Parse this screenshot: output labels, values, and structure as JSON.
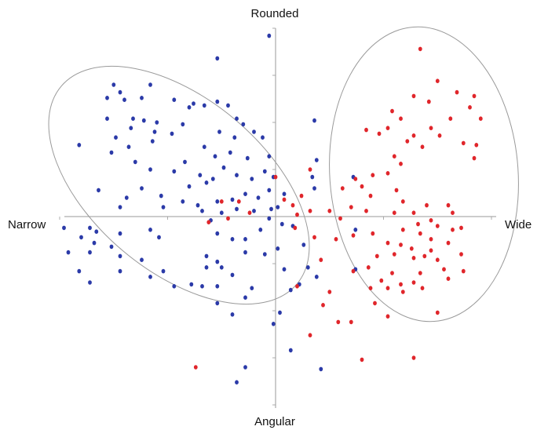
{
  "chart_data": {
    "type": "scatter",
    "title": "",
    "axes": {
      "left_label": "Narrow",
      "right_label": "Wide",
      "top_label": "Rounded",
      "bottom_label": "Angular"
    },
    "xlim": [
      -1,
      1
    ],
    "ylim": [
      -1,
      1
    ],
    "grid": false,
    "legend": "none",
    "colors": {
      "blue": "#2b3aa8",
      "red": "#e0262b",
      "ellipse": "#9a9a9a",
      "axis": "#9a9a9a"
    },
    "series": [
      {
        "color": "blue",
        "points": [
          [
            -0.03,
            0.96
          ],
          [
            -0.27,
            0.84
          ],
          [
            -0.75,
            0.7
          ],
          [
            -0.72,
            0.66
          ],
          [
            -0.58,
            0.7
          ],
          [
            -0.78,
            0.63
          ],
          [
            -0.7,
            0.62
          ],
          [
            -0.62,
            0.63
          ],
          [
            -0.38,
            0.6
          ],
          [
            -0.47,
            0.62
          ],
          [
            -0.33,
            0.59
          ],
          [
            -0.4,
            0.58
          ],
          [
            -0.27,
            0.61
          ],
          [
            -0.22,
            0.59
          ],
          [
            -0.18,
            0.52
          ],
          [
            -0.78,
            0.52
          ],
          [
            -0.66,
            0.52
          ],
          [
            -0.61,
            0.51
          ],
          [
            -0.55,
            0.5
          ],
          [
            -0.67,
            0.47
          ],
          [
            -0.43,
            0.49
          ],
          [
            -0.1,
            0.45
          ],
          [
            -0.15,
            0.49
          ],
          [
            -0.26,
            0.45
          ],
          [
            -0.48,
            0.44
          ],
          [
            -0.56,
            0.45
          ],
          [
            -0.74,
            0.42
          ],
          [
            -0.57,
            0.4
          ],
          [
            -0.33,
            0.37
          ],
          [
            -0.28,
            0.32
          ],
          [
            -0.21,
            0.34
          ],
          [
            -0.13,
            0.31
          ],
          [
            -0.19,
            0.42
          ],
          [
            -0.06,
            0.42
          ],
          [
            -0.68,
            0.37
          ],
          [
            -0.91,
            0.38
          ],
          [
            -0.76,
            0.34
          ],
          [
            -0.65,
            0.29
          ],
          [
            -0.42,
            0.29
          ],
          [
            -0.47,
            0.24
          ],
          [
            -0.58,
            0.25
          ],
          [
            -0.24,
            0.26
          ],
          [
            -0.35,
            0.22
          ],
          [
            -0.29,
            0.2
          ],
          [
            -0.18,
            0.22
          ],
          [
            -0.11,
            0.2
          ],
          [
            -0.05,
            0.24
          ],
          [
            -0.62,
            0.15
          ],
          [
            -0.69,
            0.1
          ],
          [
            -0.32,
            0.18
          ],
          [
            -0.4,
            0.16
          ],
          [
            -0.53,
            0.11
          ],
          [
            -0.43,
            0.08
          ],
          [
            -0.36,
            0.06
          ],
          [
            -0.27,
            0.08
          ],
          [
            -0.2,
            0.09
          ],
          [
            -0.14,
            0.12
          ],
          [
            -0.08,
            0.1
          ],
          [
            -0.03,
            0.14
          ],
          [
            -0.72,
            0.05
          ],
          [
            -0.52,
            0.05
          ],
          [
            -0.34,
            0.03
          ],
          [
            -0.25,
            0.02
          ],
          [
            -0.18,
            0.04
          ],
          [
            -0.1,
            0.03
          ],
          [
            -0.02,
            0.04
          ],
          [
            -0.03,
            0.32
          ],
          [
            -0.01,
            0.21
          ],
          [
            0.04,
            0.12
          ],
          [
            0.01,
            0.05
          ],
          [
            0.03,
            -0.04
          ],
          [
            -0.82,
            0.14
          ],
          [
            -0.98,
            -0.06
          ],
          [
            -0.86,
            -0.06
          ],
          [
            -0.83,
            -0.08
          ],
          [
            -0.9,
            -0.11
          ],
          [
            -0.84,
            -0.14
          ],
          [
            -0.76,
            -0.16
          ],
          [
            -0.72,
            -0.09
          ],
          [
            -0.58,
            -0.07
          ],
          [
            -0.54,
            -0.11
          ],
          [
            -0.3,
            -0.02
          ],
          [
            -0.27,
            -0.09
          ],
          [
            -0.2,
            -0.12
          ],
          [
            -0.14,
            -0.12
          ],
          [
            -0.07,
            -0.07
          ],
          [
            -0.03,
            -0.01
          ],
          [
            -0.96,
            -0.19
          ],
          [
            -0.86,
            -0.19
          ],
          [
            -0.72,
            -0.21
          ],
          [
            -0.62,
            -0.23
          ],
          [
            -0.52,
            -0.29
          ],
          [
            -0.32,
            -0.21
          ],
          [
            -0.27,
            -0.24
          ],
          [
            -0.32,
            -0.27
          ],
          [
            -0.25,
            -0.27
          ],
          [
            -0.14,
            -0.19
          ],
          [
            -0.05,
            -0.2
          ],
          [
            -0.91,
            -0.29
          ],
          [
            -0.72,
            -0.29
          ],
          [
            -0.86,
            -0.35
          ],
          [
            -0.58,
            -0.32
          ],
          [
            -0.47,
            -0.37
          ],
          [
            -0.39,
            -0.36
          ],
          [
            -0.34,
            -0.37
          ],
          [
            -0.27,
            -0.37
          ],
          [
            -0.2,
            -0.31
          ],
          [
            -0.11,
            -0.38
          ],
          [
            -0.27,
            -0.46
          ],
          [
            -0.14,
            -0.43
          ],
          [
            -0.2,
            -0.52
          ],
          [
            0.01,
            -0.17
          ],
          [
            0.04,
            -0.28
          ],
          [
            0.07,
            -0.39
          ],
          [
            0.02,
            -0.51
          ],
          [
            -0.01,
            -0.57
          ],
          [
            0.07,
            -0.71
          ],
          [
            -0.14,
            -0.8
          ],
          [
            -0.18,
            -0.88
          ],
          [
            0.21,
            -0.81
          ],
          [
            0.11,
            -0.36
          ],
          [
            0.15,
            -0.27
          ],
          [
            0.13,
            -0.15
          ],
          [
            0.08,
            -0.05
          ],
          [
            0.19,
            0.3
          ],
          [
            0.17,
            0.21
          ],
          [
            0.18,
            0.15
          ],
          [
            0.18,
            0.51
          ],
          [
            0.36,
            0.21
          ],
          [
            0.37,
            -0.07
          ],
          [
            0.37,
            -0.28
          ],
          [
            0.19,
            -0.32
          ]
        ]
      },
      {
        "color": "red",
        "points": [
          [
            0.67,
            0.89
          ],
          [
            0.75,
            0.72
          ],
          [
            0.64,
            0.64
          ],
          [
            0.71,
            0.61
          ],
          [
            0.54,
            0.56
          ],
          [
            0.84,
            0.66
          ],
          [
            0.92,
            0.64
          ],
          [
            0.9,
            0.58
          ],
          [
            0.81,
            0.52
          ],
          [
            0.95,
            0.52
          ],
          [
            0.58,
            0.52
          ],
          [
            0.52,
            0.47
          ],
          [
            0.42,
            0.46
          ],
          [
            0.48,
            0.44
          ],
          [
            0.64,
            0.43
          ],
          [
            0.72,
            0.47
          ],
          [
            0.61,
            0.4
          ],
          [
            0.68,
            0.37
          ],
          [
            0.76,
            0.43
          ],
          [
            0.87,
            0.39
          ],
          [
            0.93,
            0.38
          ],
          [
            0.92,
            0.31
          ],
          [
            0.55,
            0.32
          ],
          [
            0.58,
            0.28
          ],
          [
            0.52,
            0.23
          ],
          [
            0.56,
            0.14
          ],
          [
            0.45,
            0.22
          ],
          [
            0.44,
            0.11
          ],
          [
            0.59,
            0.08
          ],
          [
            0.37,
            0.2
          ],
          [
            0.4,
            0.16
          ],
          [
            0.31,
            0.15
          ],
          [
            0.35,
            0.05
          ],
          [
            0.42,
            0.03
          ],
          [
            0.55,
            0.02
          ],
          [
            0.64,
            0.02
          ],
          [
            0.7,
            0.06
          ],
          [
            0.8,
            0.06
          ],
          [
            0.82,
            0.02
          ],
          [
            0.66,
            -0.04
          ],
          [
            0.72,
            -0.02
          ],
          [
            0.75,
            -0.05
          ],
          [
            0.82,
            -0.07
          ],
          [
            0.67,
            -0.09
          ],
          [
            0.72,
            -0.12
          ],
          [
            0.59,
            -0.07
          ],
          [
            0.45,
            -0.09
          ],
          [
            0.36,
            -0.1
          ],
          [
            0.8,
            -0.14
          ],
          [
            0.52,
            -0.14
          ],
          [
            0.58,
            -0.15
          ],
          [
            0.63,
            -0.17
          ],
          [
            0.72,
            -0.18
          ],
          [
            0.69,
            -0.21
          ],
          [
            0.47,
            -0.21
          ],
          [
            0.55,
            -0.2
          ],
          [
            0.64,
            -0.22
          ],
          [
            0.75,
            -0.23
          ],
          [
            0.86,
            -0.2
          ],
          [
            0.78,
            -0.28
          ],
          [
            0.67,
            -0.3
          ],
          [
            0.54,
            -0.3
          ],
          [
            0.49,
            -0.34
          ],
          [
            0.43,
            -0.27
          ],
          [
            0.36,
            -0.29
          ],
          [
            0.58,
            -0.36
          ],
          [
            0.64,
            -0.35
          ],
          [
            0.68,
            -0.38
          ],
          [
            0.8,
            -0.33
          ],
          [
            0.87,
            -0.29
          ],
          [
            0.44,
            -0.38
          ],
          [
            0.52,
            -0.38
          ],
          [
            0.59,
            -0.4
          ],
          [
            0.46,
            -0.46
          ],
          [
            0.52,
            -0.53
          ],
          [
            0.35,
            -0.56
          ],
          [
            0.29,
            -0.56
          ],
          [
            0.25,
            -0.4
          ],
          [
            0.22,
            -0.47
          ],
          [
            0.75,
            -0.51
          ],
          [
            0.86,
            -0.06
          ],
          [
            0.4,
            -0.76
          ],
          [
            0.64,
            -0.75
          ],
          [
            0.16,
            -0.63
          ],
          [
            -0.37,
            -0.8
          ],
          [
            0.0,
            0.21
          ],
          [
            0.16,
            0.25
          ],
          [
            0.25,
            0.03
          ],
          [
            0.18,
            -0.11
          ],
          [
            0.28,
            -0.12
          ],
          [
            0.21,
            -0.23
          ],
          [
            0.1,
            -0.37
          ],
          [
            0.04,
            0.09
          ],
          [
            0.08,
            0.06
          ],
          [
            0.1,
            0.01
          ],
          [
            -0.12,
            0.02
          ],
          [
            -0.17,
            0.08
          ],
          [
            -0.25,
            0.08
          ],
          [
            -0.22,
            -0.01
          ],
          [
            -0.31,
            -0.03
          ],
          [
            0.09,
            -0.06
          ],
          [
            0.12,
            0.11
          ],
          [
            0.16,
            0.03
          ],
          [
            0.3,
            -0.01
          ]
        ]
      }
    ]
  }
}
